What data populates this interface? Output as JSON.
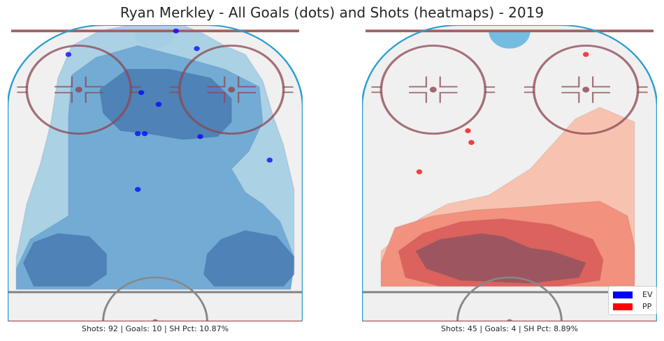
{
  "title": "Ryan Merkley - All Goals (dots) and Shots (heatmaps) - 2019",
  "chart_data": [
    {
      "type": "heatmap",
      "panel": "EV",
      "stats_text": "Shots: 92 | Goals: 10 | SH Pct: 10.87%",
      "shots": 92,
      "goals": 10,
      "sh_pct": 10.87,
      "goal_color": "#0000ff",
      "heat_colors": [
        "#a7cfe4",
        "#6faad4",
        "#4d7fb5",
        "#3d5e94"
      ],
      "goal_points": [
        {
          "x": -25,
          "y": 81
        },
        {
          "x": 6,
          "y": 89
        },
        {
          "x": 12,
          "y": 83
        },
        {
          "x": -4,
          "y": 68
        },
        {
          "x": 1,
          "y": 64
        },
        {
          "x": -5,
          "y": 54
        },
        {
          "x": -3,
          "y": 54
        },
        {
          "x": 13,
          "y": 53
        },
        {
          "x": 33,
          "y": 45
        },
        {
          "x": -5,
          "y": 35
        }
      ]
    },
    {
      "type": "heatmap",
      "panel": "PP",
      "stats_text": "Shots: 45 | Goals: 4 | SH Pct: 8.89%",
      "shots": 45,
      "goals": 4,
      "sh_pct": 8.89,
      "goal_color": "#ff0000",
      "heat_colors": [
        "#f7c0ac",
        "#f08e7b",
        "#d9605c",
        "#9a5560"
      ],
      "goal_points": [
        {
          "x": 22,
          "y": 81
        },
        {
          "x": -12,
          "y": 55
        },
        {
          "x": -11,
          "y": 51
        },
        {
          "x": -26,
          "y": 41
        }
      ]
    }
  ],
  "legend": [
    {
      "label": "EV",
      "color": "#0000ff"
    },
    {
      "label": "PP",
      "color": "#ff0000"
    }
  ]
}
